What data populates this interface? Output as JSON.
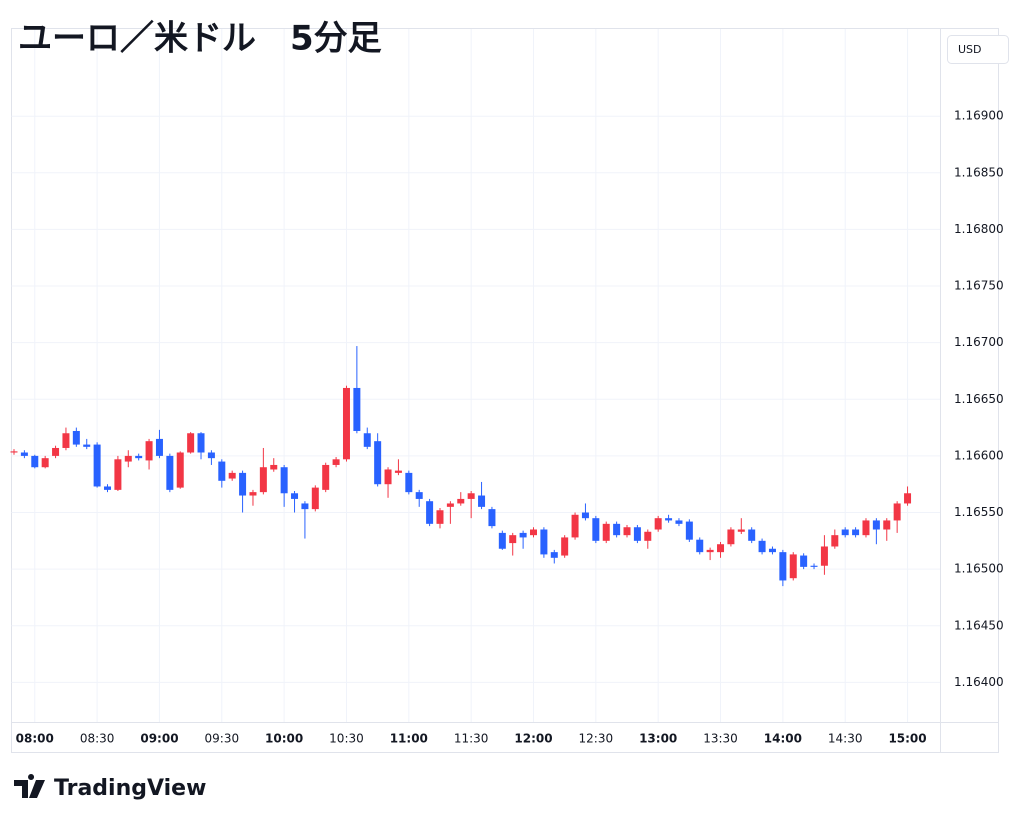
{
  "chart_data": {
    "type": "candlestick",
    "title": "ユーロ／米ドル　5分足",
    "currency": "USD",
    "brand": "TradingView",
    "up_color": "#f23645",
    "down_color": "#2962ff",
    "grid": true,
    "categories": [
      null,
      null,
      "08:00",
      null,
      null,
      null,
      null,
      null,
      "08:30",
      null,
      null,
      null,
      null,
      null,
      "09:00",
      null,
      null,
      null,
      null,
      null,
      "09:30",
      null,
      null,
      null,
      null,
      null,
      "10:00",
      null,
      null,
      null,
      null,
      null,
      "10:30",
      null,
      null,
      null,
      null,
      null,
      "11:00",
      null,
      null,
      null,
      null,
      null,
      "11:30",
      null,
      null,
      null,
      null,
      null,
      "12:00",
      null,
      null,
      null,
      null,
      null,
      "12:30",
      null,
      null,
      null,
      null,
      null,
      "13:00",
      null,
      null,
      null,
      null,
      null,
      "13:30",
      null,
      null,
      null,
      null,
      null,
      "14:00",
      null,
      null,
      null,
      null,
      null,
      "14:30",
      null,
      null,
      null,
      null,
      null,
      "15:00"
    ],
    "open": [
      1.16603,
      1.16603,
      1.166,
      1.1659,
      1.166,
      1.16607,
      1.16622,
      1.1661,
      1.1661,
      1.16573,
      1.1657,
      1.16595,
      1.166,
      1.16596,
      1.16615,
      1.166,
      1.16572,
      1.16603,
      1.1662,
      1.16603,
      1.16595,
      1.1658,
      1.16585,
      1.16565,
      1.16568,
      1.16588,
      1.1659,
      1.16567,
      1.16558,
      1.16553,
      1.1657,
      1.16592,
      1.16597,
      1.1666,
      1.1662,
      1.16613,
      1.16575,
      1.16585,
      1.16585,
      1.16568,
      1.1656,
      1.1654,
      1.16555,
      1.16558,
      1.16562,
      1.16565,
      1.16553,
      1.16532,
      1.16523,
      1.16532,
      1.1653,
      1.16535,
      1.16515,
      1.16512,
      1.16528,
      1.1655,
      1.16545,
      1.16525,
      1.1654,
      1.1653,
      1.16537,
      1.16525,
      1.16535,
      1.16545,
      1.16543,
      1.16542,
      1.16526,
      1.16515,
      1.16515,
      1.16522,
      1.16533,
      1.16535,
      1.16525,
      1.16518,
      1.16515,
      1.16492,
      1.16512,
      1.16503,
      1.16503,
      1.1652,
      1.16535,
      1.16535,
      1.1653,
      1.16543,
      1.16535,
      1.16543,
      1.16558
    ],
    "high": [
      1.16606,
      1.16605,
      1.16601,
      1.166,
      1.16609,
      1.16625,
      1.16625,
      1.16615,
      1.16612,
      1.16575,
      1.166,
      1.16605,
      1.16602,
      1.16615,
      1.16623,
      1.16602,
      1.16604,
      1.16621,
      1.16621,
      1.16605,
      1.16597,
      1.16587,
      1.16587,
      1.1657,
      1.16607,
      1.16598,
      1.16592,
      1.16569,
      1.1656,
      1.16574,
      1.16594,
      1.16599,
      1.16662,
      1.16697,
      1.16625,
      1.1662,
      1.1659,
      1.16597,
      1.16587,
      1.1657,
      1.16562,
      1.16554,
      1.1656,
      1.16568,
      1.16569,
      1.16577,
      1.16555,
      1.16534,
      1.16532,
      1.16534,
      1.16537,
      1.16537,
      1.16517,
      1.1653,
      1.1655,
      1.16558,
      1.16547,
      1.16542,
      1.16542,
      1.16539,
      1.16539,
      1.16535,
      1.16547,
      1.16548,
      1.16545,
      1.16544,
      1.16528,
      1.16519,
      1.16524,
      1.16537,
      1.16545,
      1.16537,
      1.16527,
      1.1652,
      1.16517,
      1.16515,
      1.16514,
      1.16505,
      1.1653,
      1.16535,
      1.16537,
      1.16537,
      1.16545,
      1.16545,
      1.16545,
      1.1656,
      1.16573
    ],
    "low": [
      1.16601,
      1.16598,
      1.16589,
      1.16589,
      1.16598,
      1.16605,
      1.16608,
      1.16606,
      1.16572,
      1.16568,
      1.16569,
      1.1659,
      1.16596,
      1.16588,
      1.16598,
      1.16568,
      1.16571,
      1.16602,
      1.16597,
      1.16592,
      1.16572,
      1.16578,
      1.1655,
      1.16556,
      1.16566,
      1.16586,
      1.16555,
      1.1655,
      1.16527,
      1.16551,
      1.16568,
      1.1659,
      1.16595,
      1.1662,
      1.16606,
      1.16573,
      1.16563,
      1.16583,
      1.16566,
      1.16555,
      1.16538,
      1.16536,
      1.1654,
      1.16556,
      1.16545,
      1.16553,
      1.16536,
      1.16517,
      1.16512,
      1.16518,
      1.16528,
      1.1651,
      1.16505,
      1.1651,
      1.16526,
      1.16543,
      1.16523,
      1.16523,
      1.16528,
      1.16528,
      1.16523,
      1.16518,
      1.16533,
      1.16541,
      1.16538,
      1.16524,
      1.16513,
      1.16508,
      1.1651,
      1.1652,
      1.16531,
      1.16523,
      1.16513,
      1.16513,
      1.16485,
      1.1649,
      1.165,
      1.165,
      1.16495,
      1.16518,
      1.16528,
      1.16528,
      1.16528,
      1.16522,
      1.16525,
      1.16532,
      1.16556
    ],
    "close": [
      1.16604,
      1.166,
      1.1659,
      1.16598,
      1.16607,
      1.1662,
      1.1661,
      1.16608,
      1.16573,
      1.1657,
      1.16597,
      1.166,
      1.16598,
      1.16613,
      1.166,
      1.1657,
      1.16603,
      1.1662,
      1.16603,
      1.16598,
      1.16578,
      1.16585,
      1.16565,
      1.16568,
      1.1659,
      1.16592,
      1.16567,
      1.16562,
      1.16553,
      1.16572,
      1.16592,
      1.16597,
      1.1666,
      1.16622,
      1.16608,
      1.16575,
      1.16588,
      1.16587,
      1.16568,
      1.16562,
      1.1654,
      1.16552,
      1.16558,
      1.16562,
      1.16567,
      1.16555,
      1.16538,
      1.16518,
      1.1653,
      1.16528,
      1.16535,
      1.16513,
      1.1651,
      1.16528,
      1.16548,
      1.16545,
      1.16525,
      1.1654,
      1.1653,
      1.16537,
      1.16525,
      1.16533,
      1.16545,
      1.16543,
      1.1654,
      1.16526,
      1.16515,
      1.16517,
      1.16522,
      1.16535,
      1.16535,
      1.16525,
      1.16515,
      1.16515,
      1.1649,
      1.16513,
      1.16502,
      1.16502,
      1.1652,
      1.1653,
      1.1653,
      1.1653,
      1.16543,
      1.16535,
      1.16543,
      1.16558,
      1.16567
    ],
    "ylim": [
      1.16365,
      1.16977
    ],
    "yticks": [
      {
        "value": 1.164,
        "label": "1.16400"
      },
      {
        "value": 1.1645,
        "label": "1.16450"
      },
      {
        "value": 1.165,
        "label": "1.16500"
      },
      {
        "value": 1.1655,
        "label": "1.16550"
      },
      {
        "value": 1.166,
        "label": "1.16600"
      },
      {
        "value": 1.1665,
        "label": "1.16650"
      },
      {
        "value": 1.167,
        "label": "1.16700"
      },
      {
        "value": 1.1675,
        "label": "1.16750"
      },
      {
        "value": 1.168,
        "label": "1.16800"
      },
      {
        "value": 1.1685,
        "label": "1.16850"
      },
      {
        "value": 1.169,
        "label": "1.16900"
      }
    ]
  }
}
